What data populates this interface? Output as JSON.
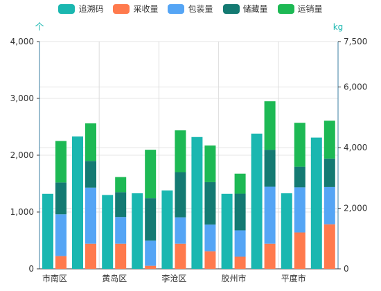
{
  "chart_data": {
    "type": "bar",
    "categories": [
      "市南区",
      "黄岛区",
      "李沧区",
      "胶州市",
      "平度市"
    ],
    "left_axis": {
      "unit": "个",
      "ticks": [
        "0",
        "1,000",
        "2,000",
        "3,000",
        "4,000"
      ],
      "range": [
        0,
        4000
      ]
    },
    "right_axis": {
      "unit": "kg",
      "ticks": [
        "0",
        "2,000",
        "4,000",
        "6,000",
        "7,500"
      ],
      "range": [
        0,
        7500
      ]
    },
    "series": [
      {
        "name": "追溯码",
        "color": "#1ab7b0",
        "axis": "left"
      },
      {
        "name": "采收量",
        "color": "#ff7a4d",
        "axis": "right"
      },
      {
        "name": "包装量",
        "color": "#55a5f5",
        "axis": "right"
      },
      {
        "name": "储藏量",
        "color": "#147a72",
        "axis": "right"
      },
      {
        "name": "运销量",
        "color": "#1db954",
        "axis": "right"
      }
    ],
    "groups": [
      {
        "category": "市南区",
        "traceability": [
          1320,
          2330
        ],
        "stacks": [
          [
            420,
            1380,
            1050,
            1370
          ],
          [
            830,
            1850,
            880,
            1240
          ]
        ]
      },
      {
        "category": "黄岛区",
        "traceability": [
          1300,
          1330
        ],
        "stacks": [
          [
            830,
            880,
            820,
            500
          ],
          [
            100,
            830,
            1400,
            1600
          ]
        ]
      },
      {
        "category": "李沧区",
        "traceability": [
          1380,
          2320
        ],
        "stacks": [
          [
            830,
            870,
            1490,
            1380
          ],
          [
            580,
            880,
            1400,
            1210
          ]
        ]
      },
      {
        "category": "胶州市",
        "traceability": [
          1320,
          2380
        ],
        "stacks": [
          [
            400,
            870,
            1210,
            660
          ],
          [
            830,
            1880,
            1220,
            1600
          ]
        ]
      },
      {
        "category": "平度市",
        "traceability": [
          1330,
          2310
        ],
        "stacks": [
          [
            1200,
            1490,
            680,
            1450
          ],
          [
            1470,
            1230,
            940,
            1250
          ]
        ]
      }
    ]
  }
}
